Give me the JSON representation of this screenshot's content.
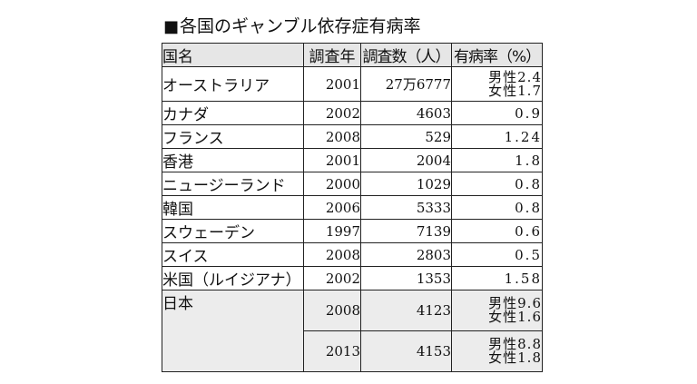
{
  "title": "各国のギャンブル依存症有病率",
  "title_marker": "■",
  "headers": [
    "国名",
    "調査年",
    "調査数（人）",
    "有病率（%）"
  ],
  "rows": [
    {
      "country": "オーストラリア",
      "year": "2001",
      "count": "27万6777",
      "rate_male": "男性2.4",
      "rate_female": "女性1.7"
    },
    {
      "country": "カナダ",
      "year": "2002",
      "count": "4603",
      "rate": "0.9"
    },
    {
      "country": "フランス",
      "year": "2008",
      "count": "529",
      "rate": "1.24"
    },
    {
      "country": "香港",
      "year": "2001",
      "count": "2004",
      "rate": "1.8"
    },
    {
      "country": "ニュージーランド",
      "year": "2000",
      "count": "1029",
      "rate": "0.8"
    },
    {
      "country": "韓国",
      "year": "2006",
      "count": "5333",
      "rate": "0.8"
    },
    {
      "country": "スウェーデン",
      "year": "1997",
      "count": "7139",
      "rate": "0.6"
    },
    {
      "country": "スイス",
      "year": "2008",
      "count": "2803",
      "rate": "0.5"
    },
    {
      "country": "米国（ルイジアナ）",
      "year": "2002",
      "count": "1353",
      "rate": "1.58"
    }
  ],
  "japan": {
    "country": "日本",
    "surveys": [
      {
        "year": "2008",
        "count": "4123",
        "rate_male": "男性9.6",
        "rate_female": "女性1.6"
      },
      {
        "year": "2013",
        "count": "4153",
        "rate_male": "男性8.8",
        "rate_female": "女性1.8"
      }
    ]
  }
}
